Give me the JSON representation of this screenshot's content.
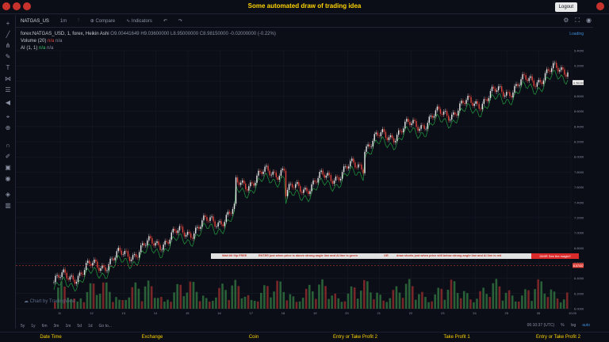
{
  "header": {
    "title": "Some automated draw of trading idea",
    "logout_label": "Logout"
  },
  "toolbar": {
    "symbol": "NATGAS_US",
    "interval": "1m",
    "compare_label": "Compare",
    "indicators_label": "Indicators"
  },
  "legend": {
    "line1_title": "forex:NATGAS_USD, 1, forex, Heikin Ashi",
    "open": "O9.00441649",
    "high": "H9.03600000",
    "low": "L8.95000000",
    "close": "C8.98150000",
    "change": "-0.02000000 (-0.22%)",
    "volume_label": "Volume (20)",
    "volume_val": "n/a",
    "volume_val2": "n/a",
    "ai_label": "AI (1, 1)",
    "ai_val": "n/a",
    "ai_val2": "n/a",
    "loading": "Loading"
  },
  "chart_data": {
    "type": "candlestick",
    "y_ticks": [
      "9.40000000",
      "9.20000000",
      "9.00000000",
      "8.80000000",
      "8.60000000",
      "8.40000000",
      "8.20000000",
      "8.00000000",
      "7.80000000",
      "7.60000000",
      "7.40000000",
      "7.20000000",
      "7.00000000",
      "6.80000000",
      "6.60000000",
      "6.40000000",
      "6.20000000",
      "6.00000000"
    ],
    "x_ticks": [
      "11",
      "12",
      "13",
      "14",
      "15",
      "16",
      "17",
      "18",
      "19",
      "20",
      "21",
      "22",
      "23",
      "24",
      "25",
      "26",
      "10:00"
    ],
    "current_price": "8.98150000",
    "level_price": "6.57437751",
    "level_color": "#e0433b"
  },
  "banner": {
    "text1": "Wait till flip FREE",
    "text2": "ENTER just when   price is above strong angle line and AI line is green",
    "text3": "OR",
    "text4": "draw shorts just when price still below strong angle line and AI line is red",
    "magic": "DMIR See the magic!!"
  },
  "watermark": "Chart by TradingView",
  "bottom": {
    "ranges": [
      "5y",
      "1y",
      "6m",
      "3m",
      "1m",
      "5d",
      "1d"
    ],
    "goto": "Go to...",
    "time": "06:10:37 (UTC)",
    "pct": "%",
    "log": "log",
    "auto": "auto"
  },
  "footer": [
    "Date Time",
    "Exchange",
    "Coin",
    "Entry or Take Profit 2",
    "Take Profit 1",
    "Entry or Take Profit 2"
  ]
}
